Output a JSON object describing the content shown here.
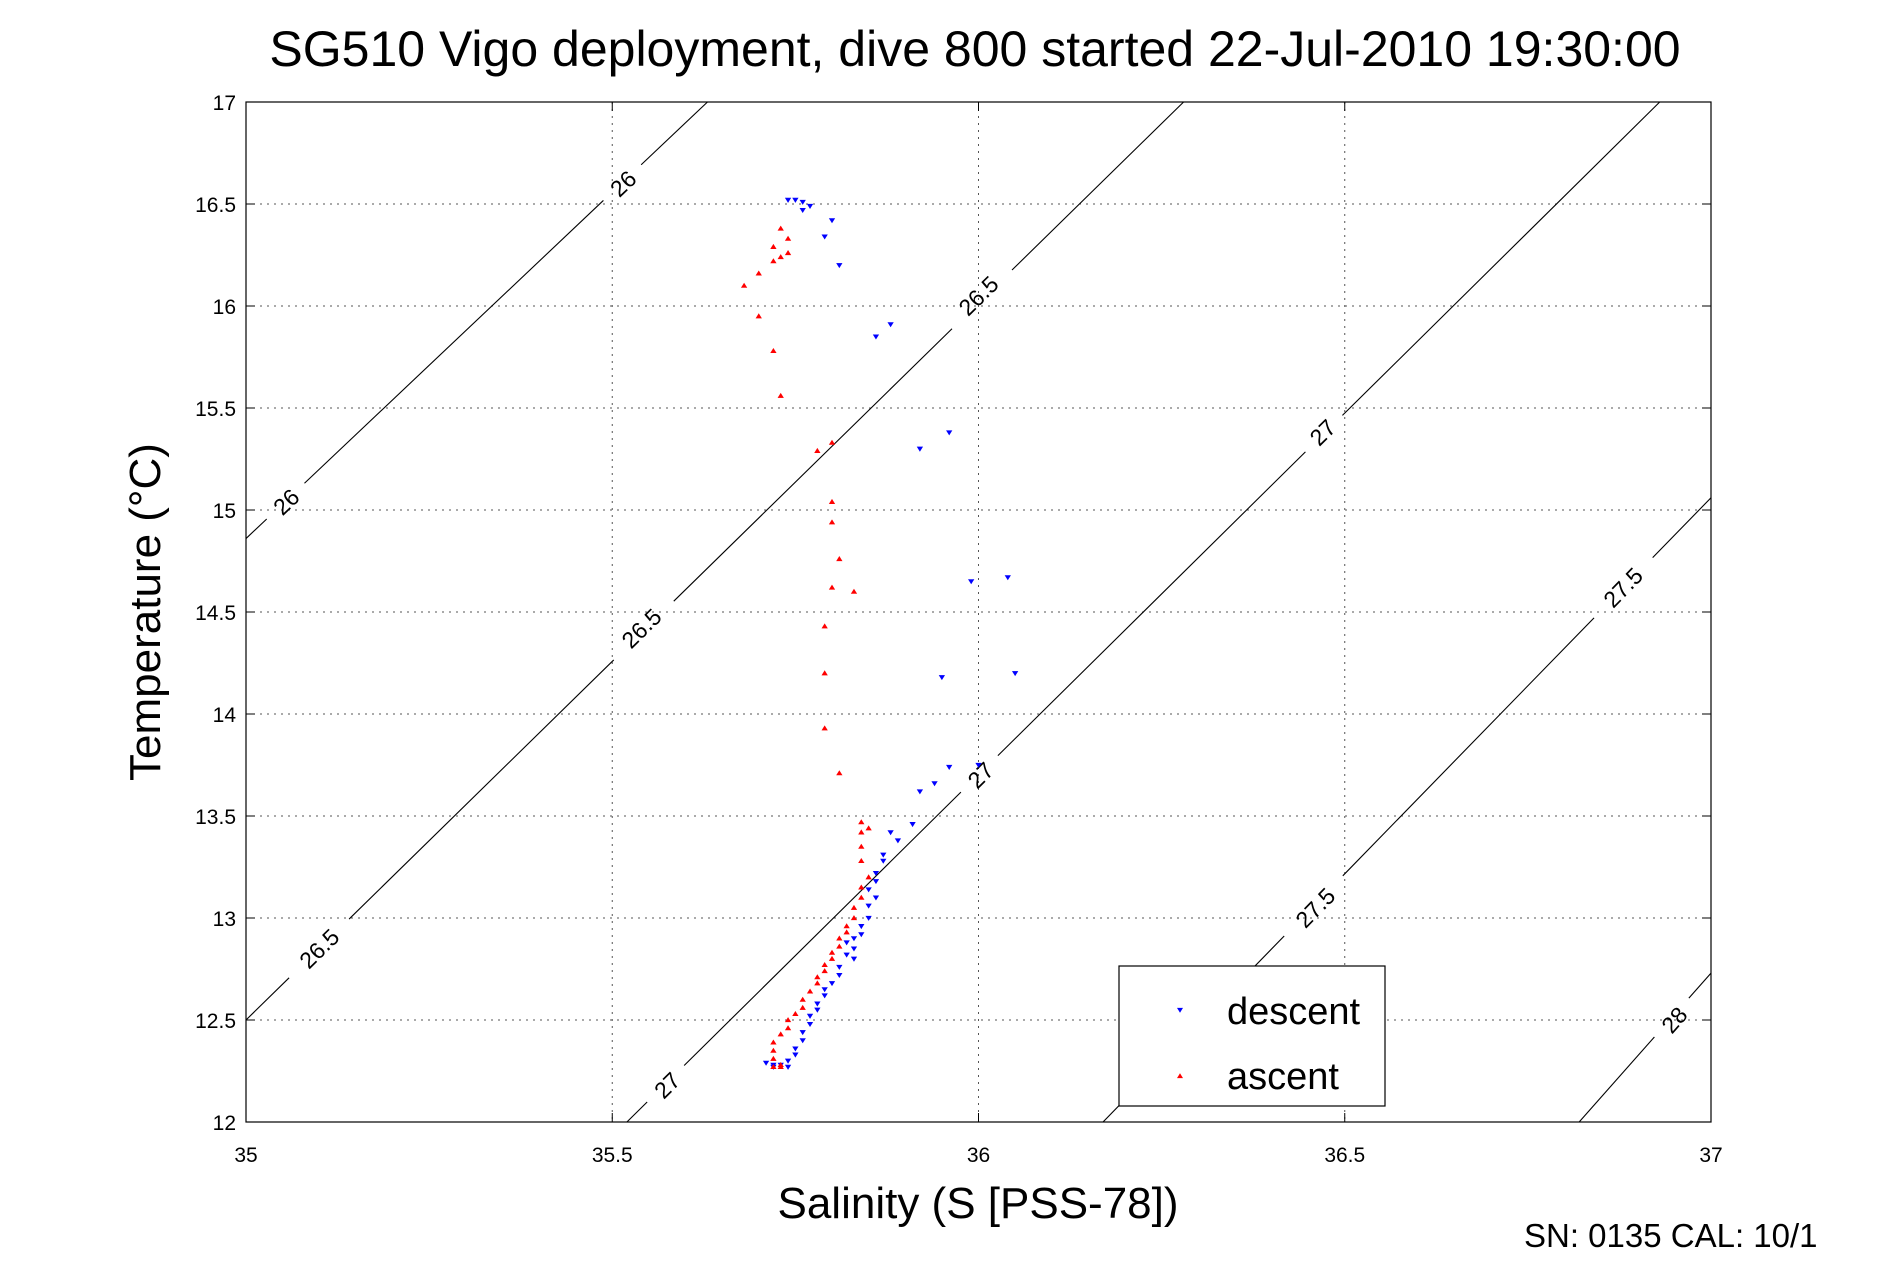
{
  "chart_data": {
    "type": "scatter",
    "title": "SG510 Vigo deployment, dive 800 started 22-Jul-2010 19:30:00",
    "xlabel": "Salinity (S [PSS-78])",
    "ylabel": "Temperature (°C)",
    "xlim": [
      35,
      37
    ],
    "ylim": [
      12,
      17
    ],
    "x_ticks": [
      35,
      35.5,
      36,
      36.5,
      37
    ],
    "x_tick_labels": [
      "35",
      "35.5",
      "36",
      "36.5",
      "37"
    ],
    "y_ticks": [
      12,
      12.5,
      13,
      13.5,
      14,
      14.5,
      15,
      15.5,
      16,
      16.5,
      17
    ],
    "y_tick_labels": [
      "12",
      "12.5",
      "13",
      "13.5",
      "14",
      "14.5",
      "15",
      "15.5",
      "16",
      "16.5",
      "17"
    ],
    "grid": true,
    "legend_position": "bottom-right",
    "density_contours": [
      {
        "sigma": "26",
        "line": [
          [
            35.0,
            14.86
          ],
          [
            35.63,
            17.0
          ]
        ],
        "labels": [
          {
            "text": "26",
            "s": 35.055,
            "t": 15.04
          },
          {
            "text": "26",
            "s": 35.515,
            "t": 16.6
          }
        ]
      },
      {
        "sigma": "26.5",
        "line": [
          [
            35.0,
            12.5
          ],
          [
            36.28,
            17.0
          ]
        ],
        "labels": [
          {
            "text": "26.5",
            "s": 35.1,
            "t": 12.85
          },
          {
            "text": "26.5",
            "s": 35.54,
            "t": 14.42
          },
          {
            "text": "26.5",
            "s": 36.0,
            "t": 16.05
          }
        ]
      },
      {
        "sigma": "27",
        "line": [
          [
            35.52,
            12.0
          ],
          [
            36.93,
            17.0
          ]
        ],
        "labels": [
          {
            "text": "27",
            "s": 35.575,
            "t": 12.18
          },
          {
            "text": "27",
            "s": 36.003,
            "t": 13.7
          },
          {
            "text": "27",
            "s": 36.47,
            "t": 15.38
          }
        ]
      },
      {
        "sigma": "27.5",
        "line": [
          [
            36.17,
            12.0
          ],
          [
            37.0,
            15.06
          ]
        ],
        "labels": [
          {
            "text": "27.5",
            "s": 36.46,
            "t": 13.05
          },
          {
            "text": "27.5",
            "s": 36.88,
            "t": 14.62
          }
        ]
      },
      {
        "sigma": "28",
        "line": [
          [
            36.82,
            12.0
          ],
          [
            37.0,
            12.73
          ]
        ],
        "labels": [
          {
            "text": "28",
            "s": 36.95,
            "t": 12.5
          }
        ]
      }
    ],
    "series": [
      {
        "name": "descent",
        "marker": "down-triangle",
        "color": "#0000ff",
        "points": [
          [
            35.74,
            16.52
          ],
          [
            35.75,
            16.52
          ],
          [
            35.76,
            16.51
          ],
          [
            35.77,
            16.49
          ],
          [
            35.76,
            16.47
          ],
          [
            35.8,
            16.42
          ],
          [
            35.79,
            16.34
          ],
          [
            35.81,
            16.2
          ],
          [
            35.88,
            15.91
          ],
          [
            35.86,
            15.85
          ],
          [
            35.96,
            15.38
          ],
          [
            35.92,
            15.3
          ],
          [
            35.99,
            14.65
          ],
          [
            36.04,
            14.67
          ],
          [
            36.05,
            14.2
          ],
          [
            35.95,
            14.18
          ],
          [
            36.0,
            13.75
          ],
          [
            35.96,
            13.74
          ],
          [
            35.94,
            13.66
          ],
          [
            35.92,
            13.62
          ],
          [
            35.91,
            13.46
          ],
          [
            35.88,
            13.42
          ],
          [
            35.89,
            13.38
          ],
          [
            35.87,
            13.31
          ],
          [
            35.87,
            13.28
          ],
          [
            35.86,
            13.22
          ],
          [
            35.86,
            13.18
          ],
          [
            35.85,
            13.14
          ],
          [
            35.86,
            13.1
          ],
          [
            35.85,
            13.06
          ],
          [
            35.85,
            13.0
          ],
          [
            35.84,
            12.96
          ],
          [
            35.84,
            12.92
          ],
          [
            35.83,
            12.9
          ],
          [
            35.82,
            12.88
          ],
          [
            35.83,
            12.85
          ],
          [
            35.82,
            12.82
          ],
          [
            35.83,
            12.8
          ],
          [
            35.81,
            12.76
          ],
          [
            35.81,
            12.72
          ],
          [
            35.8,
            12.68
          ],
          [
            35.79,
            12.65
          ],
          [
            35.79,
            12.62
          ],
          [
            35.78,
            12.58
          ],
          [
            35.78,
            12.55
          ],
          [
            35.77,
            12.52
          ],
          [
            35.77,
            12.48
          ],
          [
            35.76,
            12.44
          ],
          [
            35.76,
            12.4
          ],
          [
            35.75,
            12.36
          ],
          [
            35.75,
            12.33
          ],
          [
            35.74,
            12.3
          ],
          [
            35.73,
            12.28
          ],
          [
            35.72,
            12.28
          ],
          [
            35.71,
            12.29
          ],
          [
            35.72,
            12.27
          ],
          [
            35.74,
            12.27
          ]
        ]
      },
      {
        "name": "ascent",
        "marker": "up-triangle",
        "color": "#ff0000",
        "points": [
          [
            35.73,
            16.38
          ],
          [
            35.74,
            16.33
          ],
          [
            35.72,
            16.29
          ],
          [
            35.73,
            16.24
          ],
          [
            35.72,
            16.22
          ],
          [
            35.74,
            16.26
          ],
          [
            35.7,
            16.16
          ],
          [
            35.68,
            16.1
          ],
          [
            35.7,
            15.95
          ],
          [
            35.72,
            15.78
          ],
          [
            35.73,
            15.56
          ],
          [
            35.8,
            15.33
          ],
          [
            35.78,
            15.29
          ],
          [
            35.8,
            15.04
          ],
          [
            35.8,
            14.94
          ],
          [
            35.81,
            14.76
          ],
          [
            35.8,
            14.62
          ],
          [
            35.83,
            14.6
          ],
          [
            35.79,
            14.43
          ],
          [
            35.79,
            14.2
          ],
          [
            35.79,
            13.93
          ],
          [
            35.81,
            13.71
          ],
          [
            35.84,
            13.47
          ],
          [
            35.85,
            13.44
          ],
          [
            35.84,
            13.42
          ],
          [
            35.84,
            13.35
          ],
          [
            35.84,
            13.28
          ],
          [
            35.85,
            13.2
          ],
          [
            35.84,
            13.15
          ],
          [
            35.84,
            13.1
          ],
          [
            35.83,
            13.05
          ],
          [
            35.83,
            13.0
          ],
          [
            35.82,
            12.96
          ],
          [
            35.82,
            12.93
          ],
          [
            35.81,
            12.9
          ],
          [
            35.81,
            12.86
          ],
          [
            35.8,
            12.83
          ],
          [
            35.8,
            12.8
          ],
          [
            35.79,
            12.77
          ],
          [
            35.79,
            12.74
          ],
          [
            35.78,
            12.71
          ],
          [
            35.78,
            12.68
          ],
          [
            35.77,
            12.64
          ],
          [
            35.76,
            12.6
          ],
          [
            35.76,
            12.56
          ],
          [
            35.75,
            12.53
          ],
          [
            35.74,
            12.5
          ],
          [
            35.74,
            12.46
          ],
          [
            35.73,
            12.43
          ],
          [
            35.72,
            12.39
          ],
          [
            35.72,
            12.35
          ],
          [
            35.72,
            12.31
          ],
          [
            35.73,
            12.28
          ],
          [
            35.72,
            12.27
          ],
          [
            35.73,
            12.27
          ]
        ]
      }
    ]
  },
  "footer": {
    "serial_text": "SN: 0135  CAL: 10/1"
  }
}
